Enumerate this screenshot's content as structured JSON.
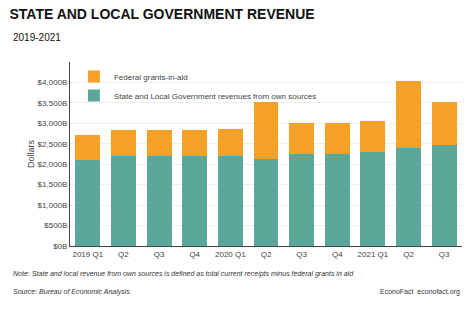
{
  "chart_data": {
    "type": "bar",
    "stacked": true,
    "title": "STATE AND LOCAL GOVERNMENT REVENUE",
    "subtitle": "2019-2021",
    "categories": [
      "2019 Q1",
      "Q2",
      "Q3",
      "Q4",
      "2020 Q1",
      "Q2",
      "Q3",
      "Q4",
      "2021 Q1",
      "Q2",
      "Q3"
    ],
    "series": [
      {
        "name": "State and Local Government revenues from own sources",
        "color": "#5BA89A",
        "values": [
          2100,
          2200,
          2200,
          2200,
          2200,
          2125,
          2250,
          2250,
          2300,
          2400,
          2475
        ]
      },
      {
        "name": "Federal grants-in-aid",
        "color": "#F5A027",
        "values": [
          625,
          625,
          625,
          625,
          650,
          1400,
          750,
          750,
          750,
          1625,
          1050
        ]
      }
    ],
    "ylabel": "Dollars",
    "ylim": [
      0,
      4500
    ],
    "yticks": [
      {
        "value": 0,
        "label": "$0B"
      },
      {
        "value": 500,
        "label": "$500B"
      },
      {
        "value": 1000,
        "label": "$1,000B"
      },
      {
        "value": 1500,
        "label": "$1,500B"
      },
      {
        "value": 2000,
        "label": "$2,000B"
      },
      {
        "value": 2500,
        "label": "$2,500B"
      },
      {
        "value": 3000,
        "label": "$3,000B"
      },
      {
        "value": 3500,
        "label": "$3,500B"
      },
      {
        "value": 4000,
        "label": "$4,000B"
      }
    ],
    "grid": true,
    "legend": "upper left",
    "annotations": [
      "Note: State and local revenue from own sources is defined as total current receipts minus federal grants in aid",
      "Source: Bureau of Economic Analysis",
      "EconoFact  econofact.org"
    ]
  }
}
